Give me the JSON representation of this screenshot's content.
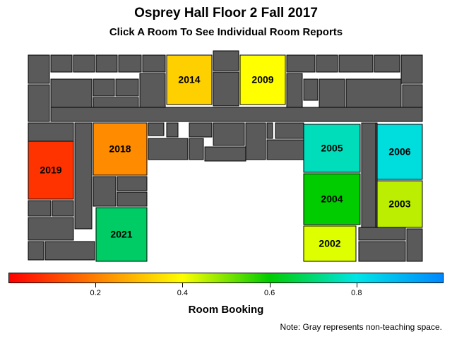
{
  "header": {
    "title": "Osprey Hall Floor 2 Fall 2017",
    "subtitle": "Click A Room To See Individual Room Reports"
  },
  "rooms": [
    {
      "id": "2014",
      "label": "2014",
      "booking": 0.36,
      "color": "#ffd000"
    },
    {
      "id": "2009",
      "label": "2009",
      "booking": 0.42,
      "color": "#ffff00"
    },
    {
      "id": "2018",
      "label": "2018",
      "booking": 0.28,
      "color": "#ff8c00"
    },
    {
      "id": "2019",
      "label": "2019",
      "booking": 0.1,
      "color": "#ff3300"
    },
    {
      "id": "2021",
      "label": "2021",
      "booking": 0.75,
      "color": "#00cc66"
    },
    {
      "id": "2005",
      "label": "2005",
      "booking": 0.8,
      "color": "#00ddbb"
    },
    {
      "id": "2006",
      "label": "2006",
      "booking": 0.85,
      "color": "#00dddd"
    },
    {
      "id": "2004",
      "label": "2004",
      "booking": 0.66,
      "color": "#00cc00"
    },
    {
      "id": "2003",
      "label": "2003",
      "booking": 0.55,
      "color": "#bbee00"
    },
    {
      "id": "2002",
      "label": "2002",
      "booking": 0.46,
      "color": "#ddff00"
    }
  ],
  "colorbar": {
    "label": "Room Booking",
    "ticks": [
      "0.2",
      "0.4",
      "0.6",
      "0.8"
    ],
    "tick_values": [
      0.2,
      0.4,
      0.6,
      0.8
    ],
    "range": [
      0,
      1
    ],
    "colors": [
      "#ff0000",
      "#ff8000",
      "#ffff00",
      "#00cc00",
      "#00e5e5",
      "#0088ff"
    ]
  },
  "note": "Note: Gray represents non-teaching space.",
  "non_teaching_color": "#5a5a5a"
}
